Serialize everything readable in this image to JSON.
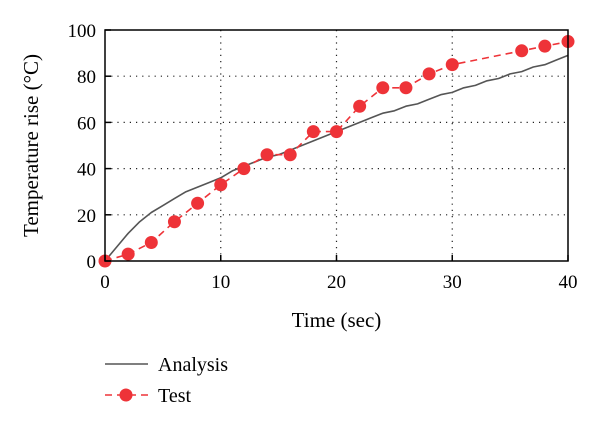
{
  "chart_data": {
    "type": "line",
    "xlabel": "Time (sec)",
    "ylabel": "Temperature rise (°C)",
    "xlim": [
      0,
      40
    ],
    "ylim": [
      0,
      100
    ],
    "xticks": [
      "0",
      "10",
      "20",
      "30",
      "40"
    ],
    "yticks": [
      "0",
      "20",
      "40",
      "60",
      "80",
      "100"
    ],
    "grid": "dotted",
    "legend_position": "below",
    "series": [
      {
        "name": "Analysis",
        "style": "solid-line",
        "color": "#555555",
        "x": [
          0,
          1,
          2,
          3,
          4,
          5,
          6,
          7,
          8,
          9,
          10,
          11,
          12,
          13,
          14,
          15,
          16,
          17,
          18,
          19,
          20,
          21,
          22,
          23,
          24,
          25,
          26,
          27,
          28,
          29,
          30,
          31,
          32,
          33,
          34,
          35,
          36,
          37,
          38,
          39,
          40
        ],
        "values": [
          0,
          6,
          12,
          17,
          21,
          24,
          27,
          30,
          32,
          34,
          36,
          39,
          41,
          43,
          45,
          46,
          48,
          50,
          52,
          54,
          56,
          58,
          60,
          62,
          64,
          65,
          67,
          68,
          70,
          72,
          73,
          75,
          76,
          78,
          79,
          81,
          82,
          84,
          85,
          87,
          89
        ]
      },
      {
        "name": "Test",
        "style": "dashed-line-circle-markers",
        "color": "#ee3338",
        "x": [
          0,
          2,
          4,
          6,
          8,
          10,
          12,
          14,
          16,
          18,
          20,
          22,
          24,
          26,
          28,
          30,
          36,
          38,
          40
        ],
        "values": [
          0,
          3,
          8,
          17,
          25,
          33,
          40,
          46,
          46,
          56,
          56,
          67,
          75,
          75,
          81,
          85,
          91,
          93,
          95
        ]
      }
    ]
  }
}
